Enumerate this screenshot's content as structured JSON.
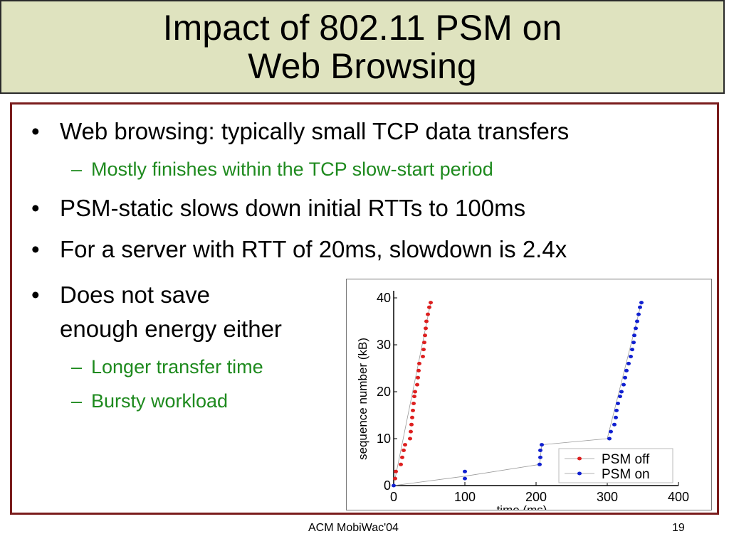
{
  "slide": {
    "title_line1": "Impact of 802.11 PSM on",
    "title_line2": "Web Browsing",
    "bullets": [
      "Web browsing: typically small TCP data transfers",
      "PSM-static slows down initial RTTs to 100ms",
      "For a server with RTT of 20ms, slowdown is 2.4x",
      "Does not save",
      "enough energy either"
    ],
    "subbullets": [
      "Mostly finishes within the TCP slow-start period",
      "Longer transfer time",
      "Bursty workload"
    ],
    "bullet_glyph": "•",
    "dash_glyph": "–",
    "footer_center": "ACM MobiWac'04",
    "footer_page": "19"
  },
  "colors": {
    "title_bg": "#dfe3bf",
    "frame": "#7a1c1c",
    "subbullet": "#1e8a1e",
    "psm_off": "#dd1f1f",
    "psm_on": "#1020d0"
  },
  "chart_data": {
    "type": "scatter",
    "xlabel": "time (ms)",
    "ylabel": "sequence number (kB)",
    "xlim": [
      0,
      400
    ],
    "ylim": [
      0,
      40
    ],
    "xticks": [
      0,
      100,
      200,
      300,
      400
    ],
    "yticks": [
      0,
      10,
      20,
      30,
      40
    ],
    "grid": false,
    "legend_position": "bottom-right",
    "series": [
      {
        "name": "PSM off",
        "color": "#dd1f1f",
        "points": [
          [
            2,
            1.5
          ],
          [
            3,
            3
          ],
          [
            10,
            4.5
          ],
          [
            12,
            6
          ],
          [
            14,
            7.5
          ],
          [
            16,
            8.7
          ],
          [
            23,
            10
          ],
          [
            24,
            11.5
          ],
          [
            25,
            13
          ],
          [
            26,
            14.5
          ],
          [
            27,
            16
          ],
          [
            28,
            17.5
          ],
          [
            29,
            19
          ],
          [
            30,
            20
          ],
          [
            33,
            21.5
          ],
          [
            34,
            23
          ],
          [
            35,
            24.5
          ],
          [
            36,
            26
          ],
          [
            41,
            27.5
          ],
          [
            42,
            29
          ],
          [
            43,
            30.5
          ],
          [
            44,
            32
          ],
          [
            45,
            33.5
          ],
          [
            46,
            35
          ],
          [
            48,
            36.5
          ],
          [
            50,
            38
          ],
          [
            52,
            39
          ]
        ],
        "line_points": [
          [
            2,
            1.5
          ],
          [
            52,
            39
          ]
        ]
      },
      {
        "name": "PSM on",
        "color": "#1020d0",
        "points": [
          [
            0,
            0
          ],
          [
            100,
            1.5
          ],
          [
            100,
            3
          ],
          [
            205,
            4.5
          ],
          [
            206,
            6
          ],
          [
            206,
            7.5
          ],
          [
            208,
            8.7
          ],
          [
            303,
            10
          ],
          [
            305,
            11.5
          ],
          [
            310,
            13
          ],
          [
            312,
            14.5
          ],
          [
            313,
            16
          ],
          [
            315,
            17.5
          ],
          [
            318,
            19
          ],
          [
            320,
            20
          ],
          [
            323,
            21.5
          ],
          [
            325,
            23
          ],
          [
            327,
            24.5
          ],
          [
            330,
            26
          ],
          [
            333,
            27.5
          ],
          [
            335,
            29
          ],
          [
            337,
            30.5
          ],
          [
            338,
            32
          ],
          [
            340,
            33.5
          ],
          [
            342,
            35
          ],
          [
            344,
            36.5
          ],
          [
            346,
            38
          ],
          [
            348,
            39
          ]
        ],
        "line_points": [
          [
            0,
            0
          ],
          [
            100,
            2
          ],
          [
            205,
            4.5
          ],
          [
            208,
            8.7
          ],
          [
            300,
            10
          ],
          [
            348,
            39
          ]
        ]
      }
    ]
  }
}
